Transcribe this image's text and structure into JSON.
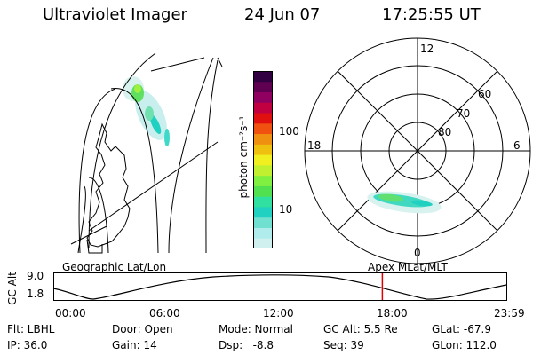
{
  "header": {
    "title": "Ultraviolet Imager",
    "date": "24 Jun 07",
    "time": "17:25:55 UT"
  },
  "colorbar": {
    "label": "photon cm⁻²s⁻¹",
    "ticks": [
      "100",
      "10"
    ],
    "colors": [
      "#d0f0f0",
      "#b0ecec",
      "#70e0d0",
      "#20d0c0",
      "#30e0a0",
      "#50e050",
      "#80f040",
      "#c0f030",
      "#f0f020",
      "#f0c010",
      "#f09010",
      "#f05010",
      "#e01010",
      "#c00040",
      "#900060",
      "#600050",
      "#300040"
    ]
  },
  "polar_plot": {
    "hour_labels": [
      "12",
      "18",
      "6",
      "0"
    ],
    "lat_labels": [
      "60",
      "70",
      "80"
    ]
  },
  "map_labels": {
    "left": "Geographic Lat/Lon",
    "right": "Apex MLat/MLT"
  },
  "timeline": {
    "ylabel": "GC Alt",
    "yticks": [
      "9.0",
      "1.8"
    ],
    "xticks": [
      "00:00",
      "06:00",
      "12:00",
      "18:00",
      "23:59"
    ],
    "cursor_hour": 17.43,
    "marker_color": "#e00000"
  },
  "info": {
    "row1": [
      "Flt: LBHL",
      "Door: Open",
      "Mode: Normal",
      "GC Alt: 5.5 Re",
      "GLat: -67.9"
    ],
    "row2": [
      "IP: 36.0",
      "Gain: 14",
      "Dsp:   -8.8",
      "Seq: 39",
      "GLon: 112.0"
    ]
  }
}
